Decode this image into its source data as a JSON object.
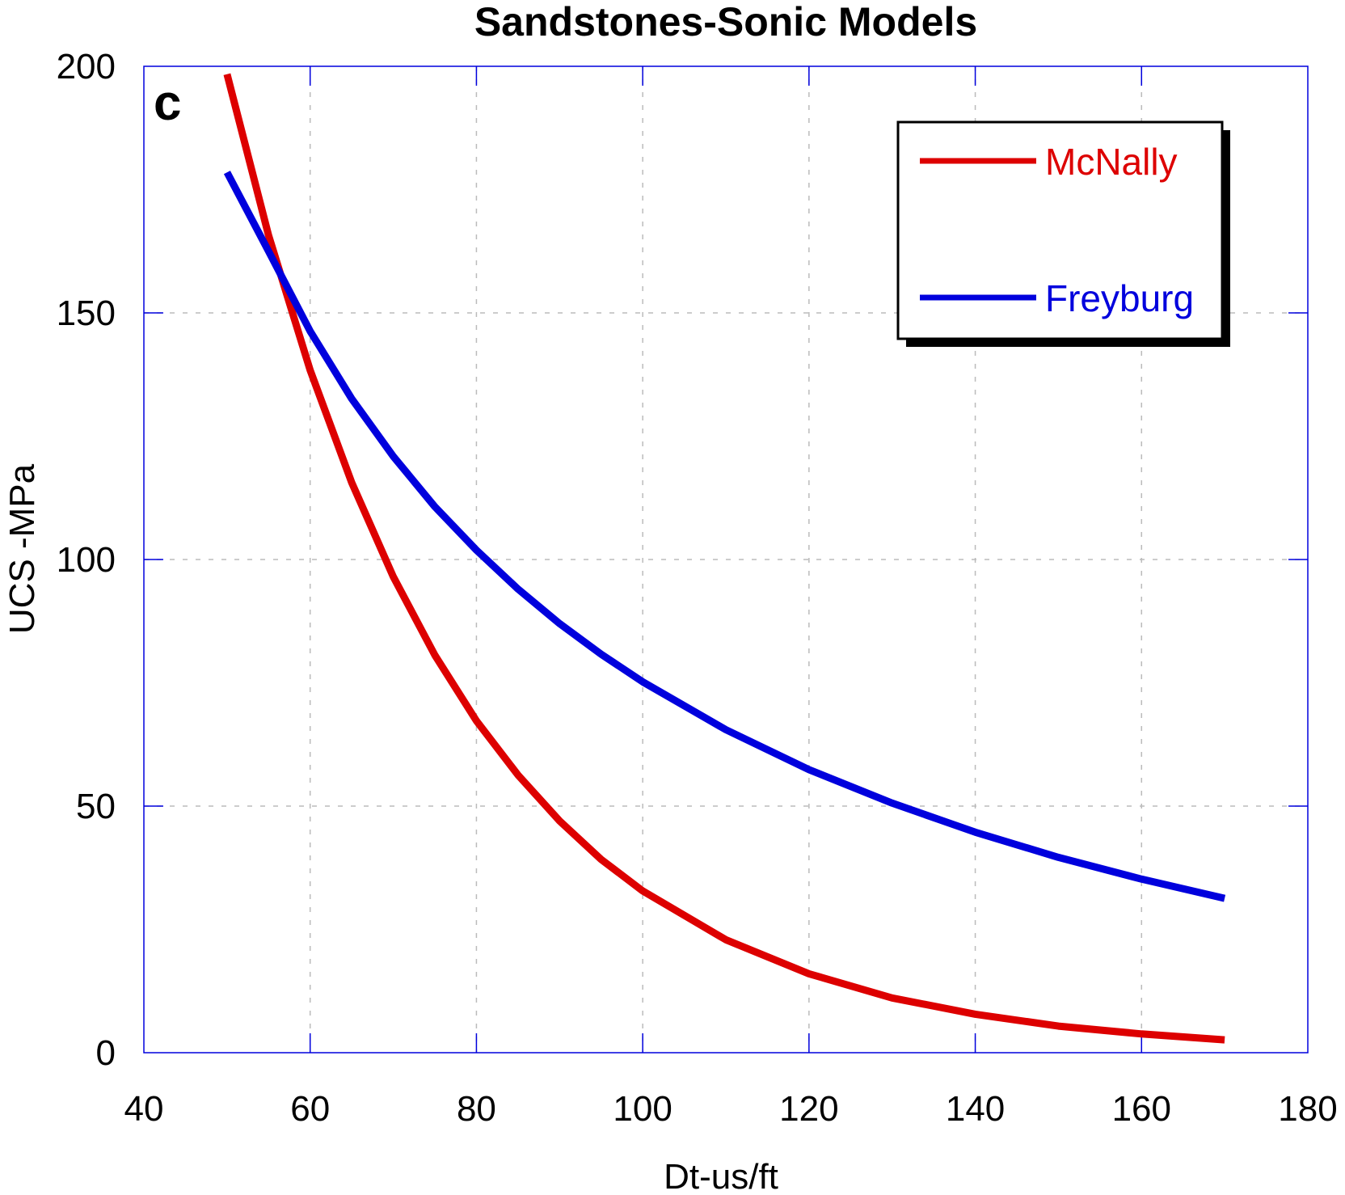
{
  "chart_data": {
    "type": "line",
    "title": "Sandstones-Sonic Models",
    "panel_label": "c",
    "xlabel": "Dt-us/ft",
    "ylabel": "UCS -MPa",
    "xlim": [
      40,
      180
    ],
    "ylim": [
      0,
      200
    ],
    "xticks": [
      40,
      60,
      80,
      100,
      120,
      140,
      160,
      180
    ],
    "yticks": [
      0,
      50,
      100,
      150,
      200
    ],
    "grid": true,
    "legend_position": "top-right",
    "x": [
      50,
      55,
      60,
      65,
      70,
      75,
      80,
      85,
      90,
      95,
      100,
      110,
      120,
      130,
      140,
      150,
      160,
      170
    ],
    "series": [
      {
        "name": "McNally",
        "color": "#dd0000",
        "values": [
          198.4,
          165.7,
          138.4,
          115.6,
          96.5,
          80.6,
          67.3,
          56.3,
          47.0,
          39.2,
          32.8,
          22.9,
          16.0,
          11.1,
          7.8,
          5.4,
          3.8,
          2.6
        ]
      },
      {
        "name": "Freyburg",
        "color": "#0000dd",
        "values": [
          178.5,
          162.5,
          146.3,
          132.6,
          120.9,
          110.7,
          101.9,
          94.0,
          87.0,
          80.8,
          75.2,
          65.5,
          57.4,
          50.6,
          44.7,
          39.6,
          35.2,
          31.3
        ]
      }
    ]
  }
}
